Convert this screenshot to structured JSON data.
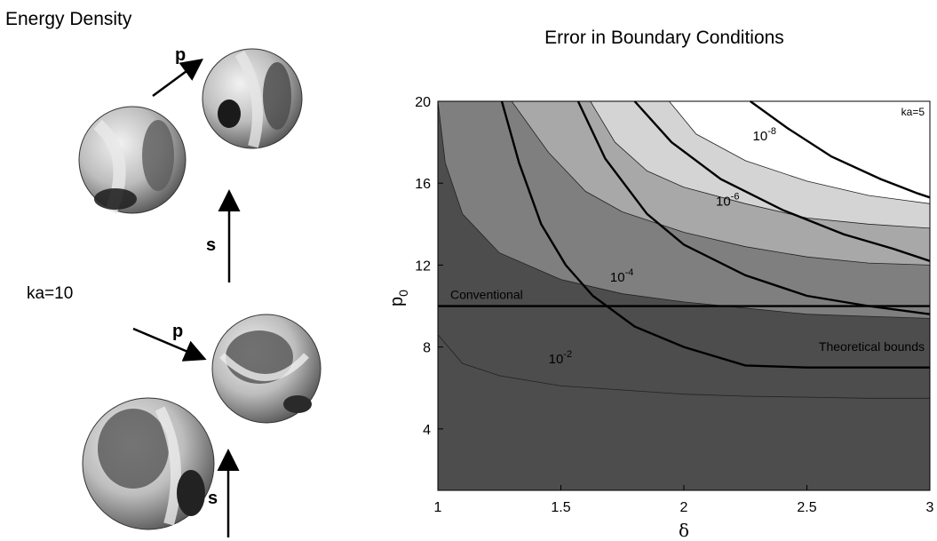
{
  "left_panel": {
    "title": "Energy Density",
    "ka_label": "ka=10",
    "polarization_p": "p",
    "polarization_s": "s"
  },
  "chart_data": {
    "type": "area",
    "title": "Error in Boundary Conditions",
    "xlabel": "δ",
    "ylabel_base": "p",
    "ylabel_sub": "0",
    "xlim": [
      1,
      3
    ],
    "ylim": [
      1,
      20
    ],
    "x_ticks": [
      1,
      1.5,
      2,
      2.5,
      3
    ],
    "x_tick_labels": [
      "1",
      "1.5",
      "2",
      "2.5",
      "3"
    ],
    "y_ticks": [
      4,
      8,
      12,
      16,
      20
    ],
    "y_tick_labels": [
      "4",
      "8",
      "12",
      "16",
      "20"
    ],
    "corner_label": "ka=5",
    "filled_bands": [
      {
        "level": 1,
        "color": "#4d4d4d",
        "boundary": [
          [
            1,
            8.6
          ],
          [
            1.1,
            7.2
          ],
          [
            1.25,
            6.6
          ],
          [
            1.5,
            6.1
          ],
          [
            1.75,
            5.9
          ],
          [
            2,
            5.7
          ],
          [
            2.25,
            5.6
          ],
          [
            2.5,
            5.55
          ],
          [
            2.75,
            5.5
          ],
          [
            3,
            5.5
          ]
        ]
      },
      {
        "level": 2,
        "color": "#7f7f7f",
        "boundary": [
          [
            1,
            20
          ],
          [
            1.03,
            17
          ],
          [
            1.1,
            14.5
          ],
          [
            1.25,
            12.6
          ],
          [
            1.5,
            11.3
          ],
          [
            1.75,
            10.6
          ],
          [
            2,
            10.2
          ],
          [
            2.25,
            9.9
          ],
          [
            2.5,
            9.6
          ],
          [
            2.75,
            9.5
          ],
          [
            3,
            9.4
          ]
        ]
      },
      {
        "level": 3,
        "color": "#a8a8a8",
        "boundary": [
          [
            1.3,
            20
          ],
          [
            1.45,
            17.5
          ],
          [
            1.6,
            15.6
          ],
          [
            1.75,
            14.6
          ],
          [
            2,
            13.6
          ],
          [
            2.25,
            12.9
          ],
          [
            2.5,
            12.4
          ],
          [
            2.75,
            12.1
          ],
          [
            3,
            12
          ]
        ]
      },
      {
        "level": 4,
        "color": "#d4d4d4",
        "boundary": [
          [
            1.62,
            20
          ],
          [
            1.72,
            18
          ],
          [
            1.85,
            16.6
          ],
          [
            2,
            15.8
          ],
          [
            2.25,
            15
          ],
          [
            2.5,
            14.3
          ],
          [
            2.75,
            14
          ],
          [
            3,
            13.8
          ]
        ]
      },
      {
        "level": 5,
        "color": "#ffffff",
        "boundary": [
          [
            1.94,
            20
          ],
          [
            2.05,
            18.4
          ],
          [
            2.25,
            17.1
          ],
          [
            2.5,
            16.1
          ],
          [
            2.75,
            15.4
          ],
          [
            3,
            15
          ]
        ]
      }
    ],
    "contour_lines": [
      {
        "label_base": "10",
        "label_exp": "-2",
        "label_at": [
          1.45,
          7.2
        ],
        "points": [
          [
            1.26,
            20
          ],
          [
            1.33,
            17
          ],
          [
            1.42,
            14
          ],
          [
            1.52,
            12
          ],
          [
            1.63,
            10.5
          ],
          [
            1.8,
            9
          ],
          [
            2,
            8
          ],
          [
            2.25,
            7.1
          ],
          [
            2.5,
            7
          ],
          [
            2.75,
            7
          ],
          [
            3,
            7
          ]
        ]
      },
      {
        "label_base": "10",
        "label_exp": "-4",
        "label_at": [
          1.7,
          11.2
        ],
        "points": [
          [
            1.57,
            20
          ],
          [
            1.68,
            17.2
          ],
          [
            1.85,
            14.5
          ],
          [
            2,
            13
          ],
          [
            2.25,
            11.5
          ],
          [
            2.5,
            10.5
          ],
          [
            2.75,
            10
          ],
          [
            3,
            9.6
          ]
        ]
      },
      {
        "label_base": "10",
        "label_exp": "-6",
        "label_at": [
          2.13,
          14.9
        ],
        "points": [
          [
            1.8,
            20
          ],
          [
            1.95,
            18
          ],
          [
            2.15,
            16.2
          ],
          [
            2.4,
            14.7
          ],
          [
            2.65,
            13.5
          ],
          [
            2.85,
            12.8
          ],
          [
            3,
            12.2
          ]
        ]
      },
      {
        "label_base": "10",
        "label_exp": "-8",
        "label_at": [
          2.28,
          18.1
        ],
        "points": [
          [
            2.27,
            20
          ],
          [
            2.42,
            18.7
          ],
          [
            2.6,
            17.3
          ],
          [
            2.8,
            16.2
          ],
          [
            2.95,
            15.5
          ],
          [
            3,
            15.3
          ]
        ]
      }
    ],
    "conventional": {
      "label": "Conventional",
      "value": 10
    },
    "theoretical_label": "Theoretical bounds"
  }
}
